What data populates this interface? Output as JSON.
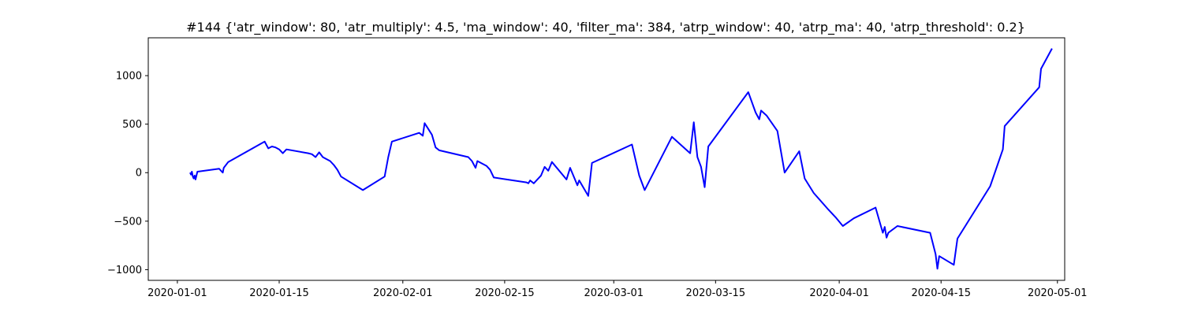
{
  "chart_data": {
    "type": "line",
    "title": "#144 {'atr_window': 80, 'atr_multiply': 4.5, 'ma_window': 40, 'filter_ma': 384, 'atrp_window': 40, 'atrp_ma': 40, 'atrp_threshold': 0.2}",
    "xlabel": "",
    "ylabel": "",
    "x_axis_type": "date",
    "xlim": [
      "2019-12-28",
      "2020-05-02"
    ],
    "ylim": [
      -1110,
      1390
    ],
    "grid": false,
    "series": [
      {
        "color": "#0000ff",
        "points": [
          [
            "2020-01-02T18:00",
            0
          ],
          [
            "2020-01-02T21:00",
            -20
          ],
          [
            "2020-01-03T00:00",
            10
          ],
          [
            "2020-01-03T03:00",
            -40
          ],
          [
            "2020-01-03T06:00",
            -60
          ],
          [
            "2020-01-03T09:00",
            -30
          ],
          [
            "2020-01-03T12:00",
            -70
          ],
          [
            "2020-01-03T18:00",
            10
          ],
          [
            "2020-01-06T18:00",
            40
          ],
          [
            "2020-01-07T06:00",
            0
          ],
          [
            "2020-01-07T09:00",
            50
          ],
          [
            "2020-01-08T00:00",
            110
          ],
          [
            "2020-01-13T00:00",
            320
          ],
          [
            "2020-01-13T12:00",
            250
          ],
          [
            "2020-01-14T00:00",
            270
          ],
          [
            "2020-01-14T12:00",
            260
          ],
          [
            "2020-01-15T00:00",
            240
          ],
          [
            "2020-01-15T12:00",
            200
          ],
          [
            "2020-01-16T00:00",
            240
          ],
          [
            "2020-01-19T00:00",
            200
          ],
          [
            "2020-01-19T12:00",
            190
          ],
          [
            "2020-01-20T00:00",
            160
          ],
          [
            "2020-01-20T12:00",
            210
          ],
          [
            "2020-01-21T00:00",
            160
          ],
          [
            "2020-01-21T12:00",
            140
          ],
          [
            "2020-01-22T00:00",
            120
          ],
          [
            "2020-01-22T12:00",
            80
          ],
          [
            "2020-01-23T00:00",
            30
          ],
          [
            "2020-01-23T12:00",
            -40
          ],
          [
            "2020-01-26T12:00",
            -180
          ],
          [
            "2020-01-29T12:00",
            -40
          ],
          [
            "2020-01-30T00:00",
            160
          ],
          [
            "2020-01-30T12:00",
            320
          ],
          [
            "2020-02-03T06:00",
            410
          ],
          [
            "2020-02-03T18:00",
            380
          ],
          [
            "2020-02-04T00:00",
            510
          ],
          [
            "2020-02-04T12:00",
            450
          ],
          [
            "2020-02-05T00:00",
            390
          ],
          [
            "2020-02-05T12:00",
            260
          ],
          [
            "2020-02-06T00:00",
            230
          ],
          [
            "2020-02-10T00:00",
            160
          ],
          [
            "2020-02-10T12:00",
            120
          ],
          [
            "2020-02-11T00:00",
            50
          ],
          [
            "2020-02-11T06:00",
            120
          ],
          [
            "2020-02-12T12:00",
            70
          ],
          [
            "2020-02-13T00:00",
            30
          ],
          [
            "2020-02-13T12:00",
            -50
          ],
          [
            "2020-02-18T00:00",
            -100
          ],
          [
            "2020-02-18T06:00",
            -110
          ],
          [
            "2020-02-18T12:00",
            -80
          ],
          [
            "2020-02-19T00:00",
            -110
          ],
          [
            "2020-02-20T00:00",
            -30
          ],
          [
            "2020-02-20T12:00",
            60
          ],
          [
            "2020-02-21T00:00",
            20
          ],
          [
            "2020-02-21T12:00",
            110
          ],
          [
            "2020-02-23T12:00",
            -70
          ],
          [
            "2020-02-24T00:00",
            50
          ],
          [
            "2020-02-25T00:00",
            -130
          ],
          [
            "2020-02-25T06:00",
            -80
          ],
          [
            "2020-02-26T12:00",
            -240
          ],
          [
            "2020-02-27T00:00",
            100
          ],
          [
            "2020-03-03T12:00",
            290
          ],
          [
            "2020-03-04T12:00",
            -30
          ],
          [
            "2020-03-05T06:00",
            -180
          ],
          [
            "2020-03-09T00:00",
            370
          ],
          [
            "2020-03-11T12:00",
            200
          ],
          [
            "2020-03-12T00:00",
            520
          ],
          [
            "2020-03-12T12:00",
            160
          ],
          [
            "2020-03-13T00:00",
            60
          ],
          [
            "2020-03-13T12:00",
            -150
          ],
          [
            "2020-03-14T00:00",
            270
          ],
          [
            "2020-03-19T12:00",
            830
          ],
          [
            "2020-03-20T12:00",
            620
          ],
          [
            "2020-03-21T00:00",
            550
          ],
          [
            "2020-03-21T06:00",
            640
          ],
          [
            "2020-03-22T00:00",
            590
          ],
          [
            "2020-03-23T12:00",
            430
          ],
          [
            "2020-03-24T12:00",
            0
          ],
          [
            "2020-03-26T12:00",
            220
          ],
          [
            "2020-03-27T06:00",
            -60
          ],
          [
            "2020-03-28T12:00",
            -210
          ],
          [
            "2020-03-30T12:00",
            -380
          ],
          [
            "2020-03-31T12:00",
            -460
          ],
          [
            "2020-04-01T12:00",
            -550
          ],
          [
            "2020-04-03T00:00",
            -470
          ],
          [
            "2020-04-06T00:00",
            -360
          ],
          [
            "2020-04-07T00:00",
            -620
          ],
          [
            "2020-04-07T06:00",
            -560
          ],
          [
            "2020-04-07T12:00",
            -670
          ],
          [
            "2020-04-07T18:00",
            -620
          ],
          [
            "2020-04-09T00:00",
            -550
          ],
          [
            "2020-04-13T12:00",
            -620
          ],
          [
            "2020-04-14T06:00",
            -840
          ],
          [
            "2020-04-14T12:00",
            -990
          ],
          [
            "2020-04-14T18:00",
            -860
          ],
          [
            "2020-04-16T18:00",
            -950
          ],
          [
            "2020-04-17T06:00",
            -680
          ],
          [
            "2020-04-21T18:00",
            -140
          ],
          [
            "2020-04-23T12:00",
            240
          ],
          [
            "2020-04-23T18:00",
            480
          ],
          [
            "2020-04-28T12:00",
            880
          ],
          [
            "2020-04-28T18:00",
            1070
          ],
          [
            "2020-04-30T06:00",
            1280
          ]
        ]
      }
    ],
    "x_ticks": [
      "2020-01-01",
      "2020-01-15",
      "2020-02-01",
      "2020-02-15",
      "2020-03-01",
      "2020-03-15",
      "2020-04-01",
      "2020-04-15",
      "2020-05-01"
    ],
    "y_ticks": [
      1000,
      500,
      0,
      -500,
      -1000
    ],
    "y_tick_labels": [
      "1000",
      "500",
      "0",
      "−500",
      "−1000"
    ]
  }
}
